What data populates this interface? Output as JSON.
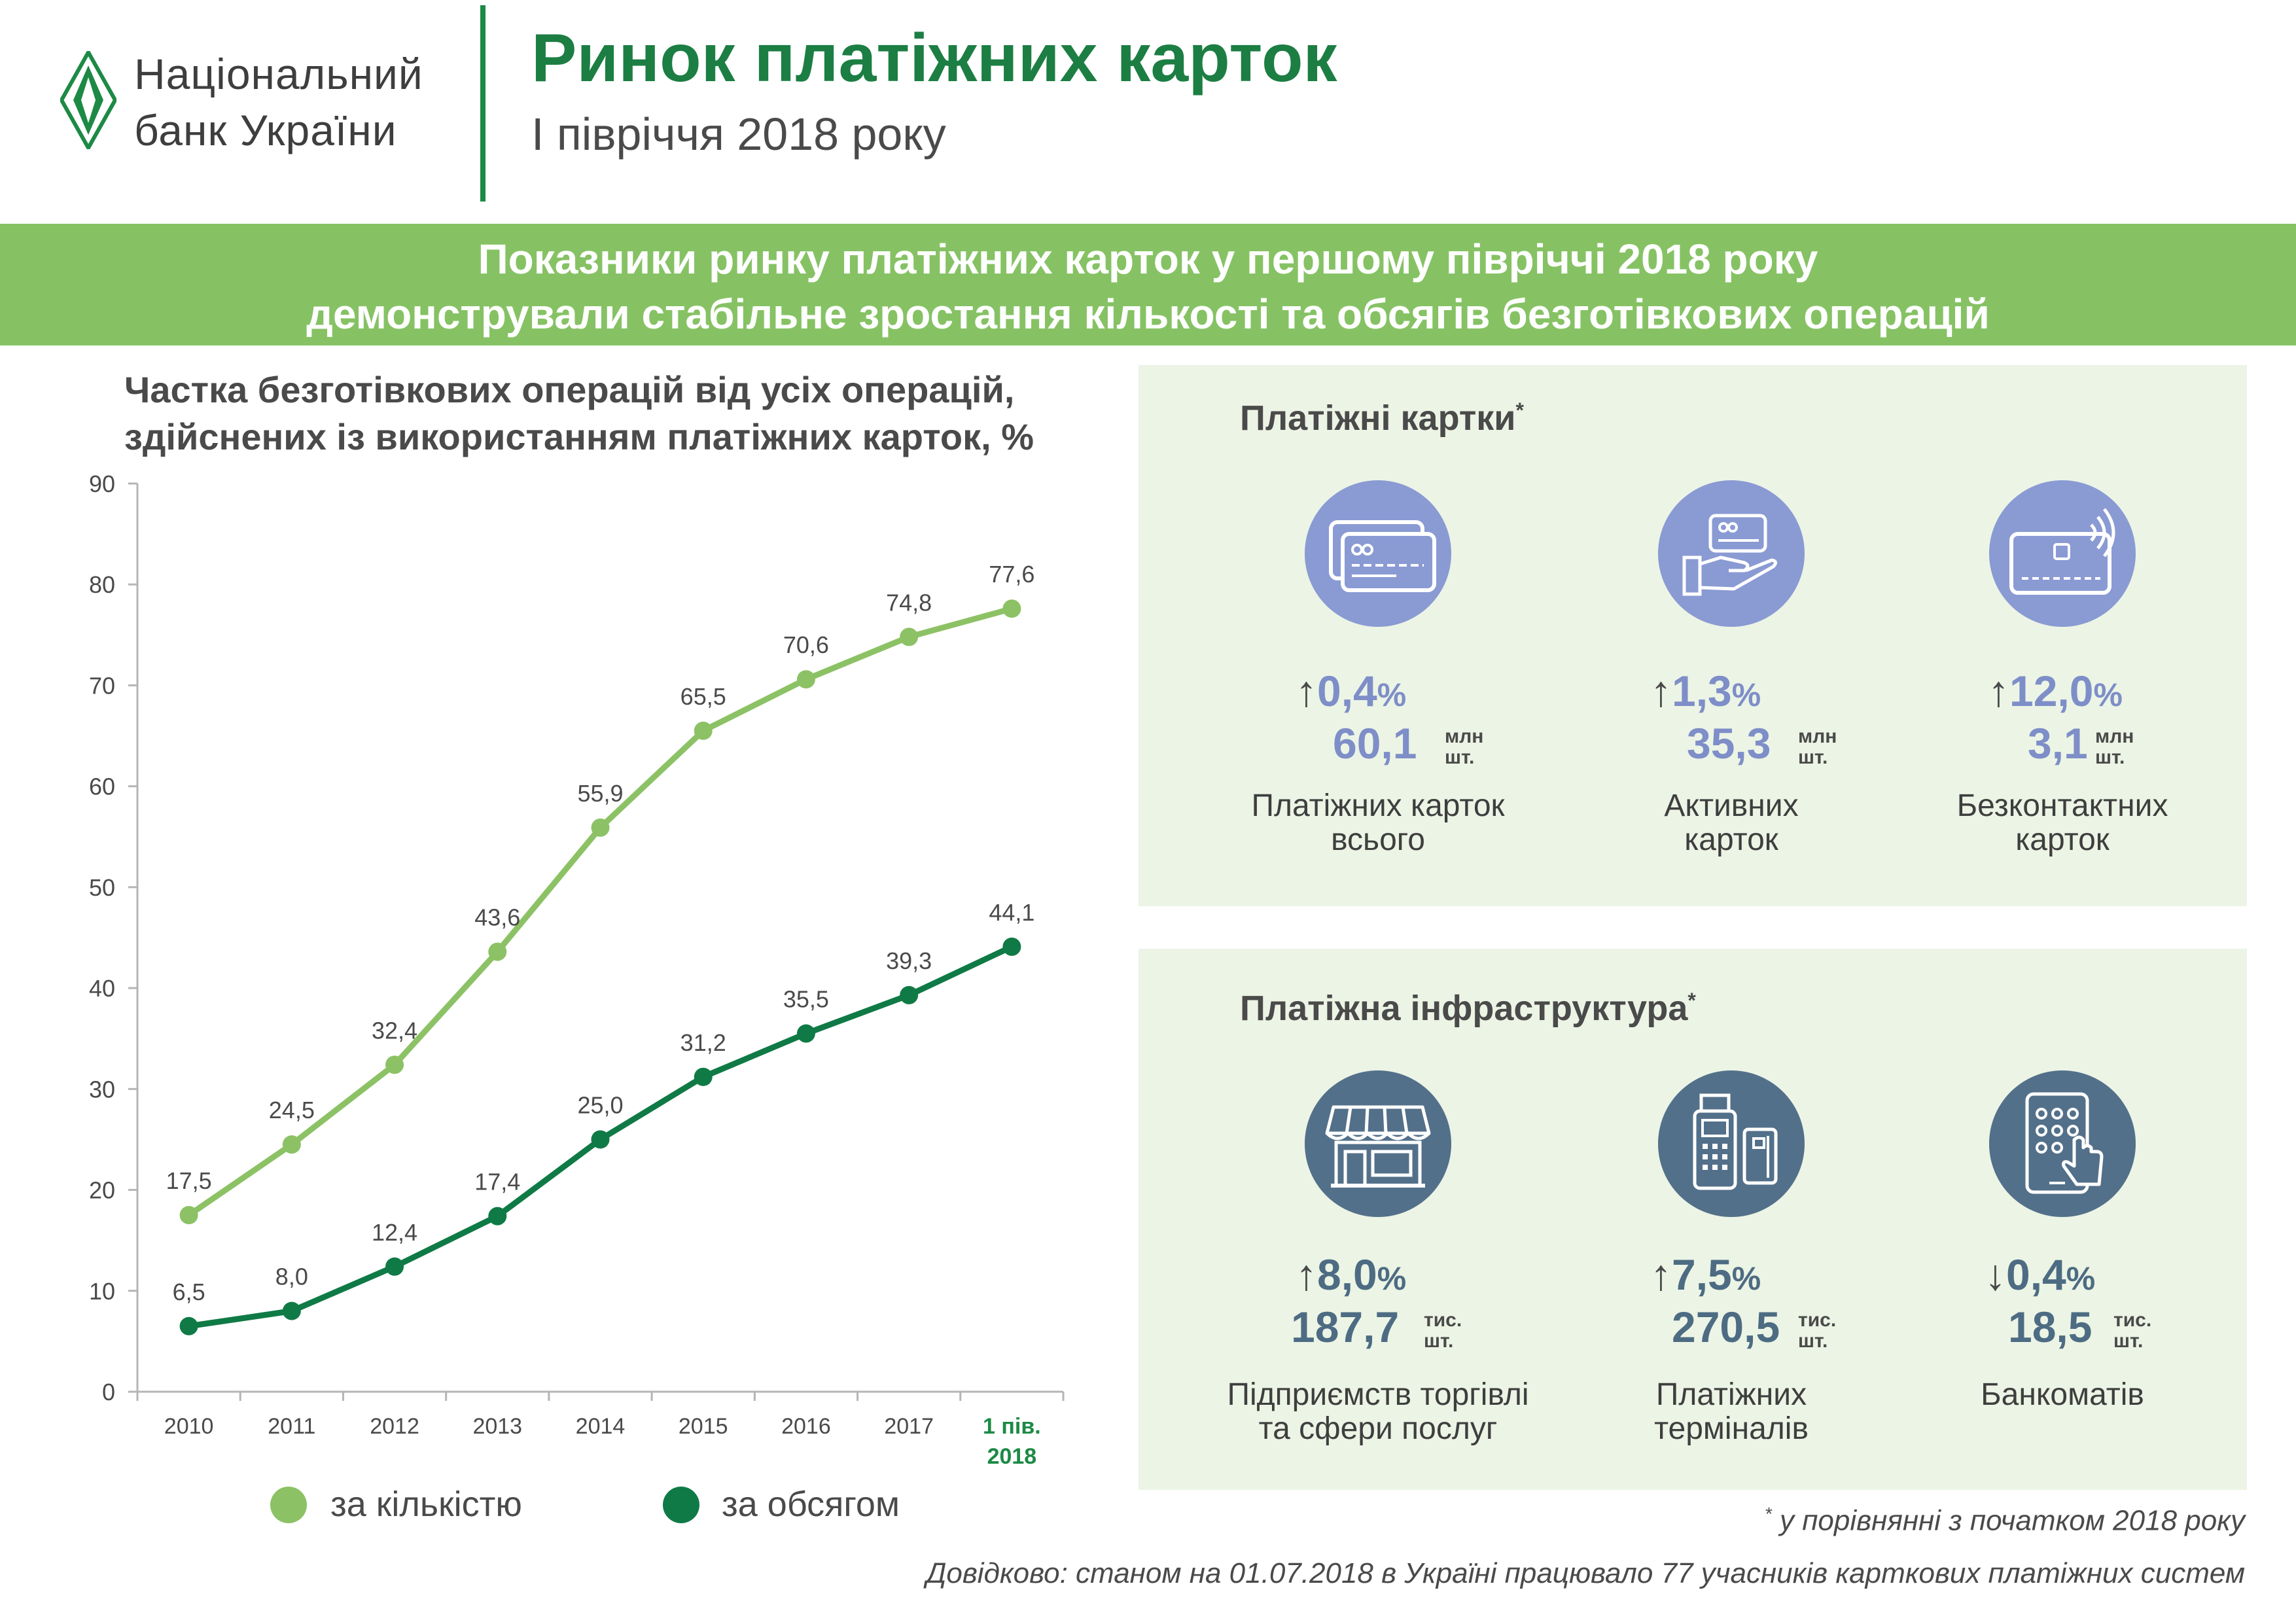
{
  "header": {
    "logo_line1": "Національний",
    "logo_line2": "банк України",
    "title": "Ринок платіжних карток",
    "subtitle": "І півріччя 2018 року"
  },
  "banner": {
    "line1": "Показники ринку платіжних карток у першому півріччі 2018 року",
    "line2": "демонстрували стабільне зростання кількості та обсягів безготівкових операцій"
  },
  "chart_title": {
    "line1": "Частка безготівкових операцій від усіх операцій,",
    "line2": "здійснених із використанням платіжних карток, %"
  },
  "chart_data": {
    "type": "line",
    "categories": [
      "2010",
      "2011",
      "2012",
      "2013",
      "2014",
      "2015",
      "2016",
      "2017",
      "1 пів. 2018"
    ],
    "category_labels": [
      [
        "2010"
      ],
      [
        "2011"
      ],
      [
        "2012"
      ],
      [
        "2013"
      ],
      [
        "2014"
      ],
      [
        "2015"
      ],
      [
        "2016"
      ],
      [
        "2017"
      ],
      [
        "1 пів.",
        "2018"
      ]
    ],
    "highlight_last_category": true,
    "ylim": [
      0,
      90
    ],
    "yticks": [
      0,
      10,
      20,
      30,
      40,
      50,
      60,
      70,
      80,
      90
    ],
    "grid": false,
    "legend_position": "bottom",
    "series": [
      {
        "name": "за кількістю",
        "color": "#8cc265",
        "values": [
          17.5,
          24.5,
          32.4,
          43.6,
          55.9,
          65.5,
          70.6,
          74.8,
          77.6
        ],
        "labels": [
          "17,5",
          "24,5",
          "32,4",
          "43,6",
          "55,9",
          "65,5",
          "70,6",
          "74,8",
          "77,6"
        ]
      },
      {
        "name": "за обсягом",
        "color": "#0f7a45",
        "values": [
          6.5,
          8.0,
          12.4,
          17.4,
          25.0,
          31.2,
          35.5,
          39.3,
          44.1
        ],
        "labels": [
          "6,5",
          "8,0",
          "12,4",
          "17,4",
          "25,0",
          "31,2",
          "35,5",
          "39,3",
          "44,1"
        ]
      }
    ]
  },
  "cards_panel": {
    "title": "Платіжні картки",
    "asterisk": "*",
    "color": "#8a9ad3",
    "items": [
      {
        "icon": "cards-icon",
        "arrow": "↑",
        "pct": "0,4",
        "pct_sign": "%",
        "value": "60,1",
        "unit1": "млн",
        "unit2": "шт.",
        "label1": "Платіжних карток",
        "label2": "всього"
      },
      {
        "icon": "card-in-hand-icon",
        "arrow": "↑",
        "pct": "1,3",
        "pct_sign": "%",
        "value": "35,3",
        "unit1": "млн",
        "unit2": "шт.",
        "label1": "Активних",
        "label2": "карток"
      },
      {
        "icon": "contactless-card-icon",
        "arrow": "↑",
        "pct": "12,0",
        "pct_sign": "%",
        "value": "3,1",
        "unit1": "млн",
        "unit2": "шт.",
        "label1": "Безконтактних",
        "label2": "карток"
      }
    ]
  },
  "infra_panel": {
    "title": "Платіжна інфраструктура",
    "asterisk": "*",
    "color": "#53708a",
    "items": [
      {
        "icon": "storefront-icon",
        "arrow": "↑",
        "pct": "8,0",
        "pct_sign": "%",
        "value": "187,7",
        "unit1": "тис.",
        "unit2": "шт.",
        "label1": "Підприємств торгівлі",
        "label2": "та сфери послуг"
      },
      {
        "icon": "payment-terminal-icon",
        "arrow": "↑",
        "pct": "7,5",
        "pct_sign": "%",
        "value": "270,5",
        "unit1": "тис.",
        "unit2": "шт.",
        "label1": "Платіжних",
        "label2": "терміналів"
      },
      {
        "icon": "atm-touch-icon",
        "arrow": "↓",
        "pct": "0,4",
        "pct_sign": "%",
        "value": "18,5",
        "unit1": "тис.",
        "unit2": "шт.",
        "label1": "Банкоматів",
        "label2": ""
      }
    ]
  },
  "footnote": {
    "star": "*",
    "text": "у порівнянні з початком 2018 року"
  },
  "reference": "Довідково: станом на 01.07.2018 в Україні працювало 77 учасників карткових платіжних систем"
}
